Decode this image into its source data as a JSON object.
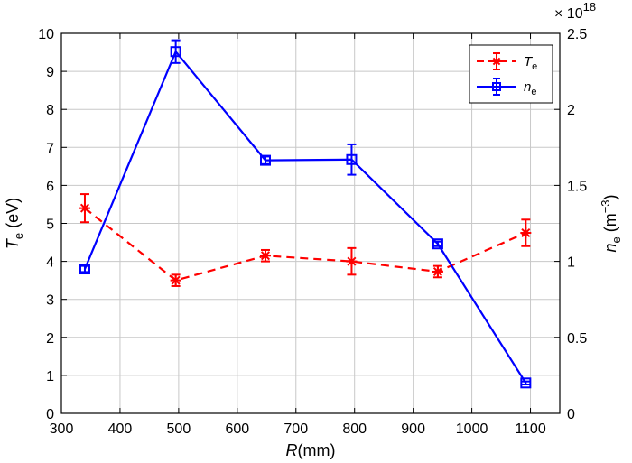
{
  "chart_data": {
    "type": "line",
    "xlabel": {
      "var": "R",
      "unit": "(mm)"
    },
    "ylabel_left": {
      "var": "T",
      "sub": "e",
      "unit": " (eV)"
    },
    "ylabel_right": {
      "var": "n",
      "sub": "e",
      "unit": " (m",
      "sup": "−3",
      "close": ")"
    },
    "right_multiplier": {
      "base": "× 10",
      "exp": "18"
    },
    "xlim": [
      300,
      1150
    ],
    "ylim_left": [
      0,
      10
    ],
    "ylim_right": [
      0,
      2.5
    ],
    "x_ticks": [
      "300",
      "400",
      "500",
      "600",
      "700",
      "800",
      "900",
      "1000",
      "1100"
    ],
    "y_ticks_left": [
      "0",
      "1",
      "2",
      "3",
      "4",
      "5",
      "6",
      "7",
      "8",
      "9",
      "10"
    ],
    "y_ticks_right": [
      "0",
      "0.5",
      "1",
      "1.5",
      "2",
      "2.5"
    ],
    "grid": true,
    "legend_position": "top-right",
    "series": [
      {
        "name": "T",
        "name_sub": "e",
        "axis": "left",
        "color": "#ff0000",
        "line_style": "dashed",
        "marker": "asterisk",
        "x": [
          340,
          495,
          648,
          795,
          942,
          1092
        ],
        "y": [
          5.4,
          3.5,
          4.15,
          4.0,
          3.73,
          4.75
        ],
        "err": [
          0.37,
          0.15,
          0.15,
          0.35,
          0.15,
          0.35
        ]
      },
      {
        "name": "n",
        "name_sub": "e",
        "axis": "right",
        "color": "#0000ff",
        "line_style": "solid",
        "marker": "square",
        "x": [
          340,
          495,
          648,
          795,
          942,
          1092
        ],
        "y": [
          0.95,
          2.38,
          1.665,
          1.67,
          1.115,
          0.2
        ],
        "err": [
          0.02,
          0.075,
          0.025,
          0.1,
          0.015,
          0.01
        ]
      }
    ]
  }
}
